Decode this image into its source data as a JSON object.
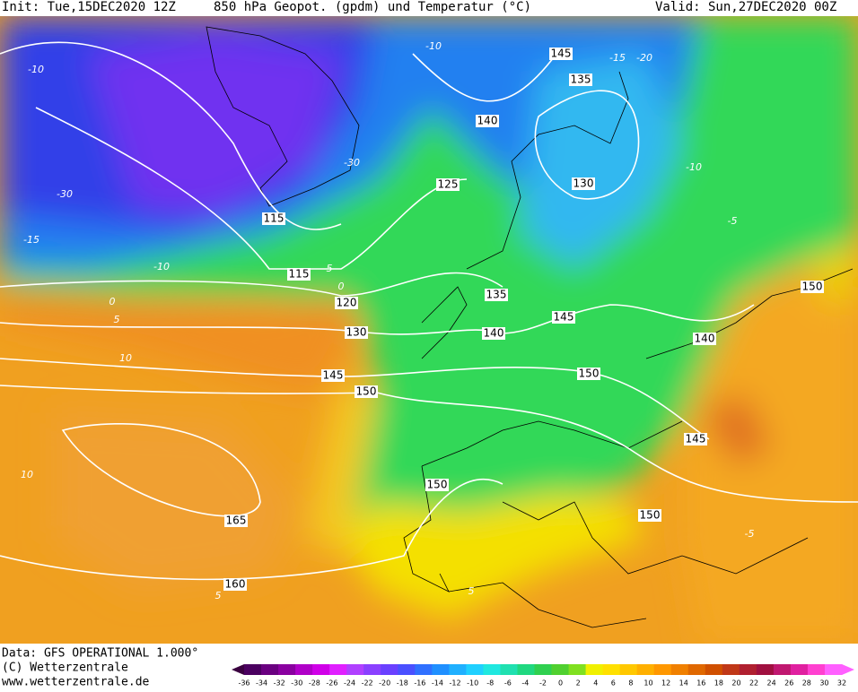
{
  "header": {
    "init": "Init: Tue,15DEC2020 12Z",
    "title": "850 hPa Geopot. (gpdm) und Temperatur (°C)",
    "valid": "Valid: Sun,27DEC2020 00Z"
  },
  "geopotential_labels": [
    145,
    135,
    140,
    130,
    125,
    115,
    115,
    120,
    130,
    145,
    150,
    135,
    140,
    145,
    150,
    140,
    150,
    145,
    150,
    150,
    165,
    160
  ],
  "temperature_labels": [
    -10,
    -15,
    -20,
    -10,
    -30,
    -30,
    -15,
    -10,
    -5,
    0,
    0,
    5,
    10,
    -10,
    -5,
    10,
    5,
    5,
    -5
  ],
  "footer": {
    "data": "Data: GFS OPERATIONAL 1.000°",
    "copyright": "(C) Wetterzentrale",
    "url": "www.wetterzentrale.de"
  },
  "scale": {
    "labels": [
      -36,
      -34,
      -32,
      -30,
      -28,
      -26,
      -24,
      -22,
      -20,
      -18,
      -16,
      -14,
      -12,
      -10,
      -8,
      -6,
      -4,
      -2,
      0,
      2,
      4,
      6,
      8,
      10,
      12,
      14,
      16,
      18,
      20,
      22,
      24,
      26,
      28,
      30,
      32
    ],
    "colors": [
      "#4b0060",
      "#6a0080",
      "#8a00a0",
      "#b000c8",
      "#d000e8",
      "#e020ff",
      "#b040ff",
      "#8a40ff",
      "#6a40ff",
      "#4a50ff",
      "#3070ff",
      "#2090ff",
      "#20b0ff",
      "#20d0ff",
      "#20e8e0",
      "#20e0b0",
      "#20d880",
      "#30d050",
      "#50d030",
      "#80e020",
      "#f0f000",
      "#ffe000",
      "#ffc800",
      "#ffb000",
      "#ff9800",
      "#f08000",
      "#e06800",
      "#d05000",
      "#c03818",
      "#b02030",
      "#a01040",
      "#c01870",
      "#e020a0",
      "#ff40d0",
      "#ff60ff"
    ]
  }
}
